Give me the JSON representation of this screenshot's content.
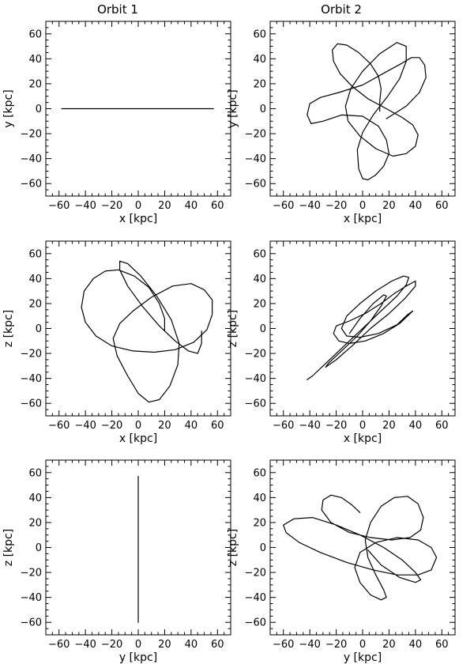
{
  "figure": {
    "column_titles": [
      "Orbit 1",
      "Orbit 2"
    ]
  },
  "chart_data": [
    {
      "type": "line",
      "column": "Orbit 1",
      "xlabel": "x [kpc]",
      "ylabel": "y [kpc]",
      "xlim": [
        -70,
        70
      ],
      "ylim": [
        -70,
        70
      ],
      "xticks": [
        -60,
        -40,
        -20,
        0,
        20,
        40,
        60
      ],
      "yticks": [
        -60,
        -40,
        -20,
        0,
        20,
        40,
        60
      ],
      "grid": false,
      "series": [
        {
          "values": [
            [
              -58,
              0
            ],
            [
              57,
              0
            ]
          ]
        }
      ]
    },
    {
      "type": "line",
      "column": "Orbit 2",
      "xlabel": "x [kpc]",
      "ylabel": "y [kpc]",
      "xlim": [
        -70,
        70
      ],
      "ylim": [
        -70,
        70
      ],
      "xticks": [
        -60,
        -40,
        -20,
        0,
        20,
        40,
        60
      ],
      "yticks": [
        -60,
        -40,
        -20,
        0,
        20,
        40,
        60
      ],
      "grid": false,
      "series": [
        {
          "values": [
            [
              13,
              -2
            ],
            [
              13,
              6
            ],
            [
              14,
              16
            ],
            [
              12,
              26
            ],
            [
              6,
              36
            ],
            [
              -3,
              45
            ],
            [
              -12,
              51
            ],
            [
              -19,
              52
            ],
            [
              -23,
              47
            ],
            [
              -22,
              38
            ],
            [
              -17,
              28
            ],
            [
              -8,
              18
            ],
            [
              4,
              8
            ],
            [
              18,
              0
            ],
            [
              30,
              -7
            ],
            [
              38,
              -13
            ],
            [
              42,
              -21
            ],
            [
              40,
              -30
            ],
            [
              33,
              -36
            ],
            [
              23,
              -38
            ],
            [
              10,
              -32
            ],
            [
              -2,
              -22
            ],
            [
              -11,
              -10
            ],
            [
              -13,
              2
            ],
            [
              -9,
              16
            ],
            [
              0,
              30
            ],
            [
              13,
              44
            ],
            [
              26,
              53
            ],
            [
              33,
              50
            ],
            [
              33,
              38
            ],
            [
              28,
              24
            ],
            [
              19,
              10
            ],
            [
              8,
              -5
            ],
            [
              0,
              -19
            ],
            [
              -4,
              -33
            ],
            [
              -3,
              -48
            ],
            [
              0,
              -56
            ],
            [
              4,
              -57
            ],
            [
              10,
              -53
            ],
            [
              16,
              -46
            ],
            [
              20,
              -36
            ],
            [
              18,
              -25
            ],
            [
              12,
              -14
            ],
            [
              0,
              -6
            ],
            [
              -16,
              -5
            ],
            [
              -30,
              -10
            ],
            [
              -39,
              -12
            ],
            [
              -42,
              -5
            ],
            [
              -40,
              4
            ],
            [
              -32,
              9
            ],
            [
              -18,
              13
            ],
            [
              0,
              19
            ],
            [
              17,
              29
            ],
            [
              29,
              36
            ],
            [
              37,
              41
            ],
            [
              43,
              41
            ],
            [
              47,
              35
            ],
            [
              48,
              25
            ],
            [
              43,
              13
            ],
            [
              33,
              2
            ],
            [
              18,
              -8
            ]
          ]
        }
      ]
    },
    {
      "type": "line",
      "column": "Orbit 1",
      "xlabel": "x [kpc]",
      "ylabel": "z [kpc]",
      "xlim": [
        -70,
        70
      ],
      "ylim": [
        -70,
        70
      ],
      "xticks": [
        -60,
        -40,
        -20,
        0,
        20,
        40,
        60
      ],
      "yticks": [
        -60,
        -40,
        -20,
        0,
        20,
        40,
        60
      ],
      "grid": false,
      "series": [
        {
          "values": [
            [
              20,
              -2
            ],
            [
              20,
              8
            ],
            [
              16,
              20
            ],
            [
              8,
              33
            ],
            [
              -3,
              42
            ],
            [
              -15,
              47
            ],
            [
              -25,
              46
            ],
            [
              -34,
              40
            ],
            [
              -41,
              30
            ],
            [
              -43,
              17
            ],
            [
              -40,
              5
            ],
            [
              -32,
              -6
            ],
            [
              -20,
              -14
            ],
            [
              -4,
              -18
            ],
            [
              12,
              -19
            ],
            [
              28,
              -17
            ],
            [
              42,
              -11
            ],
            [
              52,
              -1
            ],
            [
              56,
              11
            ],
            [
              56,
              23
            ],
            [
              50,
              31
            ],
            [
              40,
              36
            ],
            [
              26,
              34
            ],
            [
              10,
              25
            ],
            [
              -4,
              14
            ],
            [
              -14,
              4
            ],
            [
              -19,
              -8
            ],
            [
              -16,
              -22
            ],
            [
              -8,
              -38
            ],
            [
              0,
              -52
            ],
            [
              8,
              -59
            ],
            [
              16,
              -57
            ],
            [
              24,
              -46
            ],
            [
              30,
              -29
            ],
            [
              31,
              -12
            ],
            [
              25,
              7
            ],
            [
              14,
              26
            ],
            [
              2,
              42
            ],
            [
              -8,
              52
            ],
            [
              -14,
              54
            ],
            [
              -14,
              47
            ],
            [
              -8,
              34
            ],
            [
              3,
              18
            ],
            [
              16,
              2
            ],
            [
              28,
              -10
            ],
            [
              38,
              -18
            ],
            [
              45,
              -20
            ],
            [
              48,
              -12
            ],
            [
              48,
              -2
            ]
          ]
        }
      ]
    },
    {
      "type": "line",
      "column": "Orbit 2",
      "xlabel": "x [kpc]",
      "ylabel": "z [kpc]",
      "xlim": [
        -70,
        70
      ],
      "ylim": [
        -70,
        70
      ],
      "xticks": [
        -60,
        -40,
        -20,
        0,
        20,
        40,
        60
      ],
      "yticks": [
        -60,
        -40,
        -20,
        0,
        20,
        40,
        60
      ],
      "grid": false,
      "series": [
        {
          "values": [
            [
              -42,
              -41
            ],
            [
              -38,
              -38
            ],
            [
              -30,
              -30
            ],
            [
              -20,
              -20
            ],
            [
              -8,
              -8
            ],
            [
              4,
              4
            ],
            [
              16,
              16
            ],
            [
              26,
              26
            ],
            [
              33,
              35
            ],
            [
              35,
              41
            ],
            [
              31,
              42
            ],
            [
              22,
              38
            ],
            [
              10,
              30
            ],
            [
              -2,
              20
            ],
            [
              -12,
              10
            ],
            [
              -16,
              0
            ],
            [
              -12,
              -6
            ],
            [
              -2,
              -7
            ],
            [
              12,
              -4
            ],
            [
              26,
              3
            ],
            [
              34,
              11
            ],
            [
              38,
              14
            ],
            [
              36,
              12
            ],
            [
              28,
              4
            ],
            [
              16,
              -4
            ],
            [
              2,
              -10
            ],
            [
              -10,
              -12
            ],
            [
              -18,
              -10
            ],
            [
              -22,
              -4
            ],
            [
              -20,
              2
            ],
            [
              -10,
              6
            ],
            [
              2,
              12
            ],
            [
              14,
              20
            ],
            [
              24,
              28
            ],
            [
              33,
              34
            ],
            [
              40,
              38
            ],
            [
              40,
              34
            ],
            [
              32,
              24
            ],
            [
              20,
              12
            ],
            [
              6,
              0
            ],
            [
              -8,
              -14
            ],
            [
              -20,
              -25
            ],
            [
              -28,
              -31
            ],
            [
              -26,
              -28
            ],
            [
              -16,
              -18
            ],
            [
              -4,
              -6
            ],
            [
              6,
              6
            ],
            [
              14,
              18
            ],
            [
              18,
              26
            ],
            [
              16,
              27
            ],
            [
              8,
              20
            ],
            [
              -2,
              8
            ],
            [
              -10,
              -4
            ]
          ]
        }
      ]
    },
    {
      "type": "line",
      "column": "Orbit 1",
      "xlabel": "y [kpc]",
      "ylabel": "z [kpc]",
      "xlim": [
        -70,
        70
      ],
      "ylim": [
        -70,
        70
      ],
      "xticks": [
        -60,
        -40,
        -20,
        0,
        20,
        40,
        60
      ],
      "yticks": [
        -60,
        -40,
        -20,
        0,
        20,
        40,
        60
      ],
      "grid": false,
      "series": [
        {
          "values": [
            [
              0,
              57
            ],
            [
              0,
              -60
            ]
          ]
        }
      ]
    },
    {
      "type": "line",
      "column": "Orbit 2",
      "xlabel": "y [kpc]",
      "ylabel": "z [kpc]",
      "xlim": [
        -70,
        70
      ],
      "ylim": [
        -70,
        70
      ],
      "xticks": [
        -60,
        -40,
        -20,
        0,
        20,
        40,
        60
      ],
      "yticks": [
        -60,
        -40,
        -20,
        0,
        20,
        40,
        60
      ],
      "grid": false,
      "series": [
        {
          "values": [
            [
              -2,
              28
            ],
            [
              -8,
              34
            ],
            [
              -16,
              40
            ],
            [
              -24,
              42
            ],
            [
              -30,
              38
            ],
            [
              -31,
              30
            ],
            [
              -24,
              20
            ],
            [
              -10,
              12
            ],
            [
              6,
              8
            ],
            [
              22,
              6
            ],
            [
              36,
              8
            ],
            [
              44,
              14
            ],
            [
              46,
              24
            ],
            [
              42,
              35
            ],
            [
              34,
              41
            ],
            [
              24,
              40
            ],
            [
              14,
              33
            ],
            [
              6,
              20
            ],
            [
              2,
              6
            ],
            [
              4,
              -8
            ],
            [
              10,
              -22
            ],
            [
              16,
              -34
            ],
            [
              18,
              -40
            ],
            [
              14,
              -42
            ],
            [
              6,
              -38
            ],
            [
              -2,
              -28
            ],
            [
              -6,
              -16
            ],
            [
              -2,
              -4
            ],
            [
              10,
              4
            ],
            [
              26,
              8
            ],
            [
              42,
              6
            ],
            [
              52,
              0
            ],
            [
              56,
              -8
            ],
            [
              52,
              -18
            ],
            [
              42,
              -22
            ],
            [
              26,
              -22
            ],
            [
              8,
              -18
            ],
            [
              -12,
              -12
            ],
            [
              -32,
              -4
            ],
            [
              -48,
              4
            ],
            [
              -58,
              12
            ],
            [
              -60,
              18
            ],
            [
              -52,
              23
            ],
            [
              -38,
              24
            ],
            [
              -20,
              18
            ],
            [
              -2,
              10
            ],
            [
              16,
              0
            ],
            [
              30,
              -10
            ],
            [
              40,
              -20
            ],
            [
              44,
              -26
            ],
            [
              40,
              -28
            ],
            [
              28,
              -24
            ],
            [
              14,
              -14
            ],
            [
              4,
              -2
            ]
          ]
        }
      ]
    }
  ]
}
